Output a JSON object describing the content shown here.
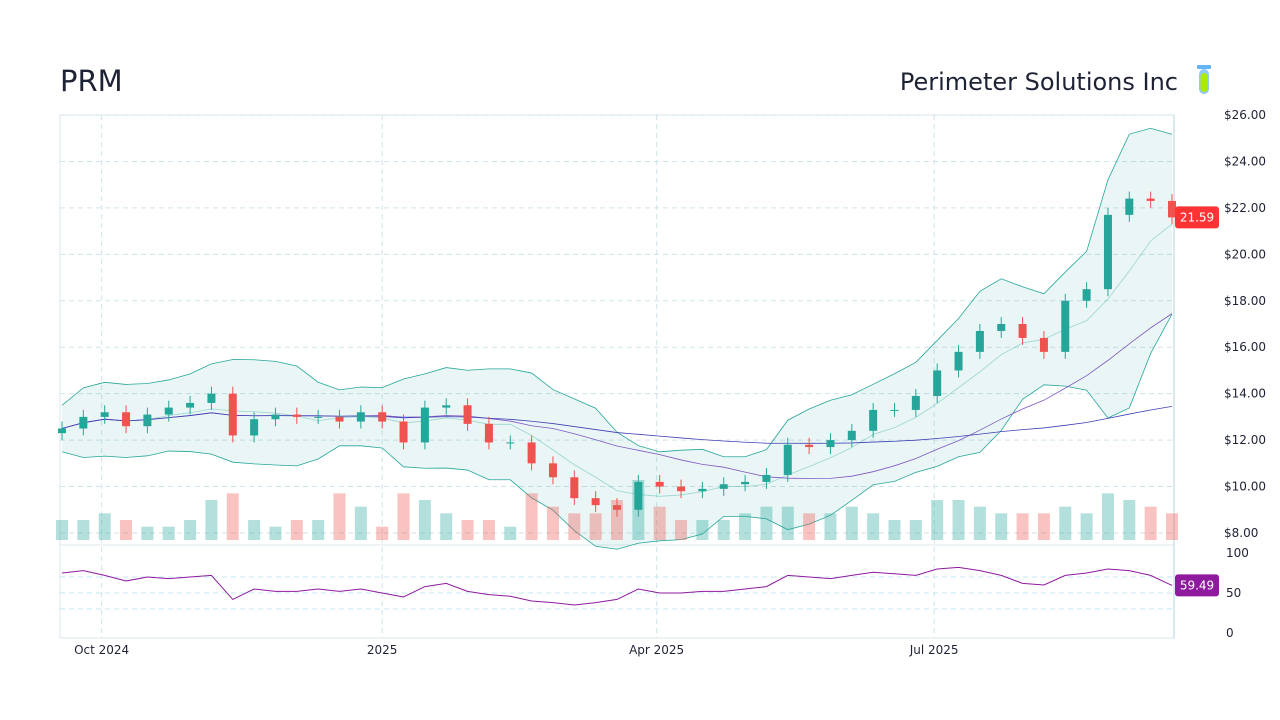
{
  "header": {
    "ticker": "PRM",
    "company": "Perimeter Solutions Inc",
    "icon": "test-tube-icon"
  },
  "chart_data": {
    "type": "candlestick",
    "dates": [
      "2024-09-18",
      "2024-09-25",
      "2024-10-02",
      "2024-10-09",
      "2024-10-16",
      "2024-10-23",
      "2024-10-30",
      "2024-11-06",
      "2024-11-13",
      "2024-11-20",
      "2024-11-27",
      "2024-12-04",
      "2024-12-11",
      "2024-12-18",
      "2024-12-25",
      "2025-01-01",
      "2025-01-08",
      "2025-01-15",
      "2025-01-22",
      "2025-01-29",
      "2025-02-05",
      "2025-02-12",
      "2025-02-19",
      "2025-02-26",
      "2025-03-05",
      "2025-03-12",
      "2025-03-19",
      "2025-03-26",
      "2025-04-02",
      "2025-04-09",
      "2025-04-16",
      "2025-04-23",
      "2025-04-30",
      "2025-05-07",
      "2025-05-14",
      "2025-05-21",
      "2025-05-28",
      "2025-06-04",
      "2025-06-11",
      "2025-06-18",
      "2025-06-25",
      "2025-07-02",
      "2025-07-09",
      "2025-07-16",
      "2025-07-23",
      "2025-07-30",
      "2025-08-06",
      "2025-08-13",
      "2025-08-20",
      "2025-08-27",
      "2025-09-03",
      "2025-09-10",
      "2025-09-17"
    ],
    "close": [
      12.5,
      13.0,
      13.2,
      12.6,
      13.1,
      13.4,
      13.6,
      14.0,
      12.2,
      12.9,
      13.1,
      13.0,
      13.0,
      12.8,
      13.2,
      12.8,
      11.9,
      13.4,
      13.5,
      12.7,
      11.9,
      11.9,
      11.0,
      10.4,
      9.5,
      9.2,
      9.0,
      10.2,
      10.0,
      9.8,
      9.9,
      10.1,
      10.2,
      10.5,
      11.8,
      11.7,
      12.0,
      12.4,
      13.3,
      13.3,
      13.9,
      15.0,
      15.8,
      16.7,
      17.0,
      16.4,
      15.8,
      18.0,
      18.5,
      21.7,
      22.4,
      22.3,
      21.59
    ],
    "volume": [
      3,
      3,
      4,
      3,
      2,
      2,
      3,
      6,
      7,
      3,
      2,
      3,
      3,
      7,
      5,
      2,
      7,
      6,
      4,
      3,
      3,
      2,
      7,
      5,
      4,
      4,
      6,
      9,
      5,
      3,
      3,
      3,
      4,
      5,
      5,
      4,
      4,
      5,
      4,
      3,
      3,
      6,
      6,
      5,
      4,
      4,
      4,
      5,
      4,
      7,
      6,
      5,
      4
    ],
    "rsi": [
      75,
      78,
      72,
      65,
      70,
      68,
      70,
      72,
      42,
      55,
      52,
      52,
      55,
      52,
      55,
      50,
      45,
      58,
      62,
      52,
      48,
      46,
      40,
      38,
      35,
      38,
      42,
      55,
      50,
      50,
      52,
      52,
      55,
      58,
      72,
      70,
      68,
      72,
      76,
      74,
      72,
      80,
      82,
      78,
      72,
      62,
      60,
      72,
      75,
      80,
      78,
      72,
      59.49
    ],
    "last_price": "21.59",
    "last_rsi": "59.49",
    "y_ticks": [
      "$26.00",
      "$24.00",
      "$22.00",
      "$20.00",
      "$18.00",
      "$16.00",
      "$14.00",
      "$12.00",
      "$10.00",
      "$8.00"
    ],
    "ylim": [
      8,
      26
    ],
    "rsi_ticks": [
      "100",
      "50",
      "0"
    ],
    "x_ticks": [
      {
        "label": "Oct 2024",
        "date": "2024-10-01"
      },
      {
        "label": "2025",
        "date": "2025-01-01"
      },
      {
        "label": "Apr 2025",
        "date": "2025-04-01"
      },
      {
        "label": "Jul 2025",
        "date": "2025-07-01"
      }
    ],
    "colors": {
      "up": "#26a69a",
      "down": "#ef5350",
      "band": "#26a69a",
      "ma_long": "#3f3fb5",
      "ma_mid": "#7e57c2",
      "rsi": "#8e1a9e",
      "price_label": "#ff3333",
      "rsi_label": "#8e1a9e"
    },
    "grid": true
  }
}
